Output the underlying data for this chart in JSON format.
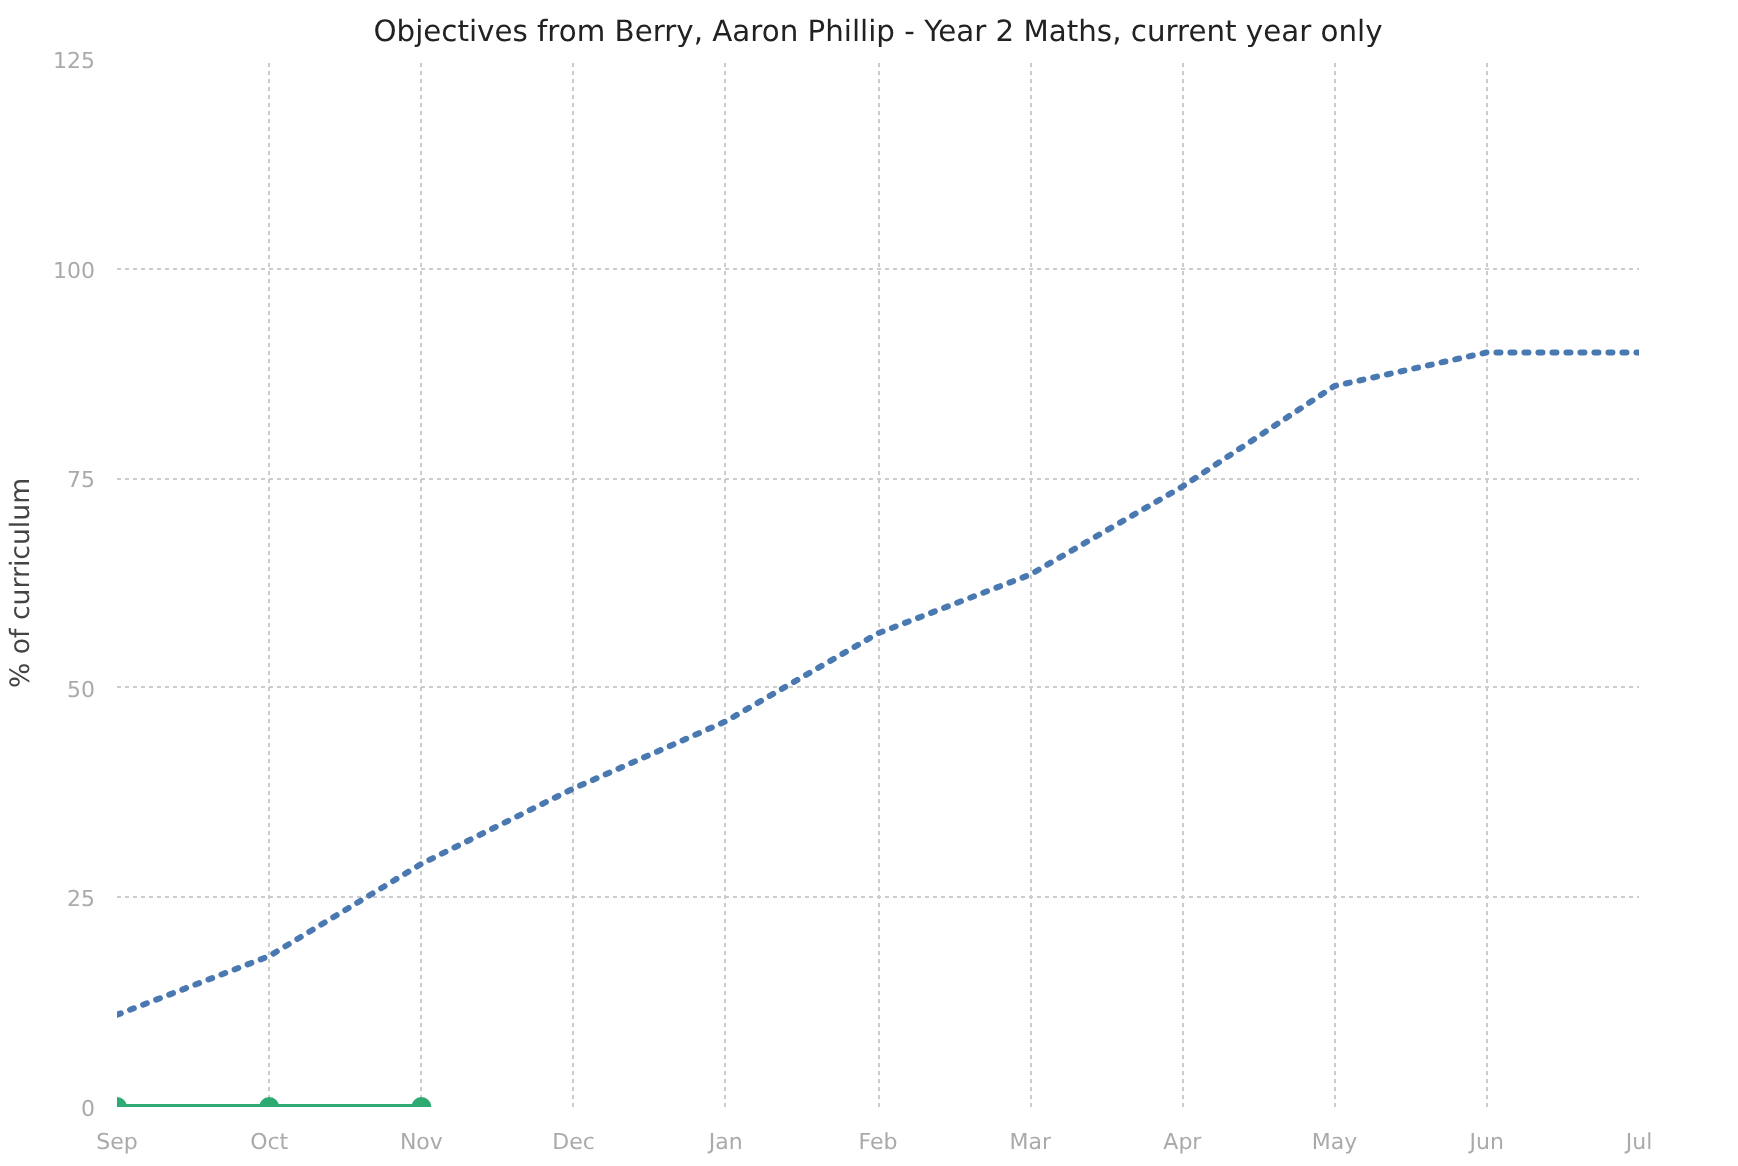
{
  "chart_data": {
    "type": "line",
    "title": "Objectives from Berry, Aaron Phillip - Year 2 Maths, current year only",
    "ylabel": "% of curriculum",
    "categories": [
      "Sep",
      "Oct",
      "Nov",
      "Dec",
      "Jan",
      "Feb",
      "Mar",
      "Apr",
      "May",
      "Jun",
      "Jul"
    ],
    "series": [
      {
        "color": "#4a78b0",
        "values": [
          11,
          18,
          29,
          38,
          46,
          56.5,
          63.5,
          74,
          86,
          90,
          90
        ],
        "marker": "none",
        "line_style": "dotted"
      },
      {
        "color": "#2eaa72",
        "values": [
          0,
          0,
          0,
          null,
          null,
          null,
          null,
          null,
          null,
          null,
          null
        ],
        "marker": "circle",
        "line_style": "solid"
      }
    ],
    "ylim": [
      0,
      125
    ],
    "yticks": [
      0,
      25,
      50,
      75,
      100,
      125
    ],
    "grid": true
  }
}
